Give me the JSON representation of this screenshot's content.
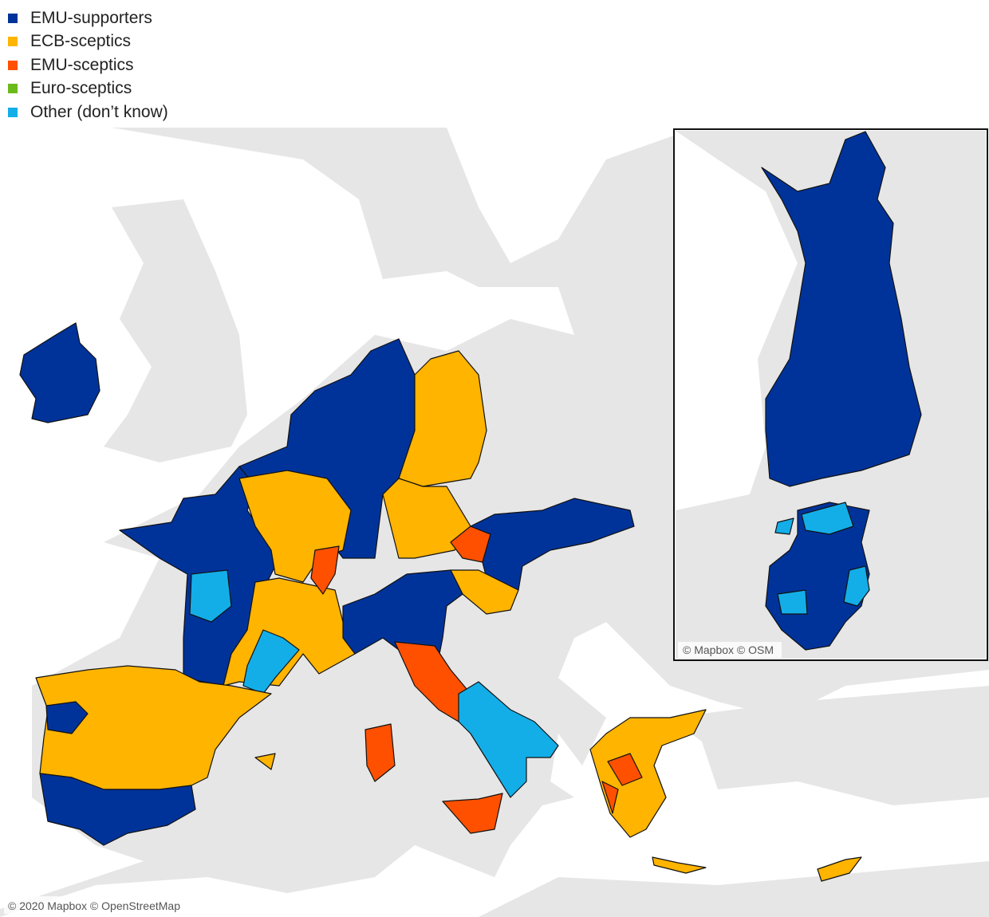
{
  "legend": {
    "items": [
      {
        "label": "EMU-supporters",
        "color": "#00339a"
      },
      {
        "label": "ECB-sceptics",
        "color": "#ffb400"
      },
      {
        "label": "EMU-sceptics",
        "color": "#ff5000"
      },
      {
        "label": "Euro-sceptics",
        "color": "#6aba1b"
      },
      {
        "label": "Other (don’t know)",
        "color": "#13aee8"
      }
    ]
  },
  "map": {
    "attribution": "© 2020 Mapbox © OpenStreetMap"
  },
  "inset": {
    "attribution": "© Mapbox © OSM"
  }
}
